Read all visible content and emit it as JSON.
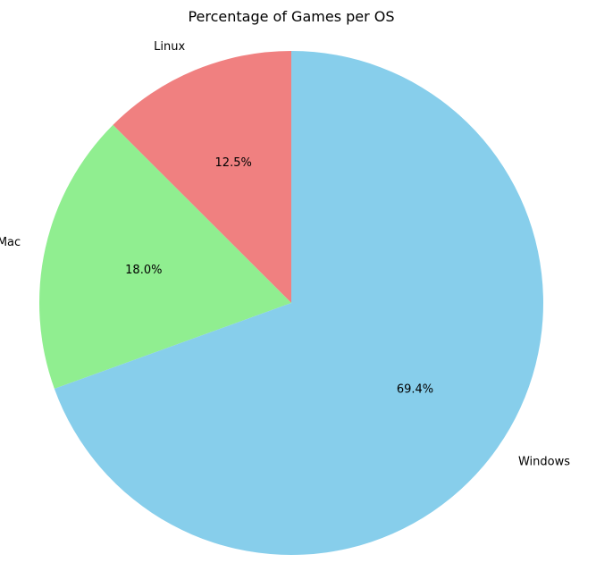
{
  "chart_data": {
    "type": "pie",
    "title": "Percentage of Games per OS",
    "start_angle_deg": 90,
    "direction": "counterclockwise",
    "slices": [
      {
        "label": "Linux",
        "value": 12.5,
        "display": "12.5%",
        "color": "#f08080"
      },
      {
        "label": "Mac",
        "value": 18.0,
        "display": "18.0%",
        "color": "#90ee90"
      },
      {
        "label": "Windows",
        "value": 69.4,
        "display": "69.4%",
        "color": "#87ceeb"
      }
    ]
  }
}
